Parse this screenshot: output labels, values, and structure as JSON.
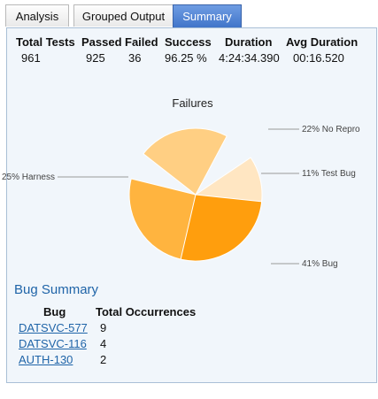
{
  "tabs": [
    {
      "label": "Analysis",
      "active": false
    },
    {
      "label": "Grouped Output",
      "active": false
    },
    {
      "label": "Summary",
      "active": true
    }
  ],
  "stats": {
    "headers": [
      "Total Tests",
      "Passed",
      "Failed",
      "Success",
      "Duration",
      "Avg Duration"
    ],
    "values": [
      "961",
      "925",
      "36",
      "96.25 %",
      "4:24:34.390",
      "00:16.520"
    ]
  },
  "chart_data": {
    "type": "pie",
    "title": "Failures",
    "slices": [
      {
        "label": "41% Bug",
        "value": 41,
        "color": "#ff9e0d"
      },
      {
        "label": "25% Harness",
        "value": 25,
        "color": "#ffb43f"
      },
      {
        "label": "22% No Repro",
        "value": 22,
        "color": "#ffcf83"
      },
      {
        "label": "11% Test Bug",
        "value": 11,
        "color": "#ffe6c2"
      }
    ]
  },
  "bug_summary": {
    "title": "Bug Summary",
    "columns": [
      "Bug",
      "Total Occurrences"
    ],
    "rows": [
      {
        "bug": "DATSVC-577",
        "count": "9"
      },
      {
        "bug": "DATSVC-116",
        "count": "4"
      },
      {
        "bug": "AUTH-130",
        "count": "2"
      }
    ]
  }
}
